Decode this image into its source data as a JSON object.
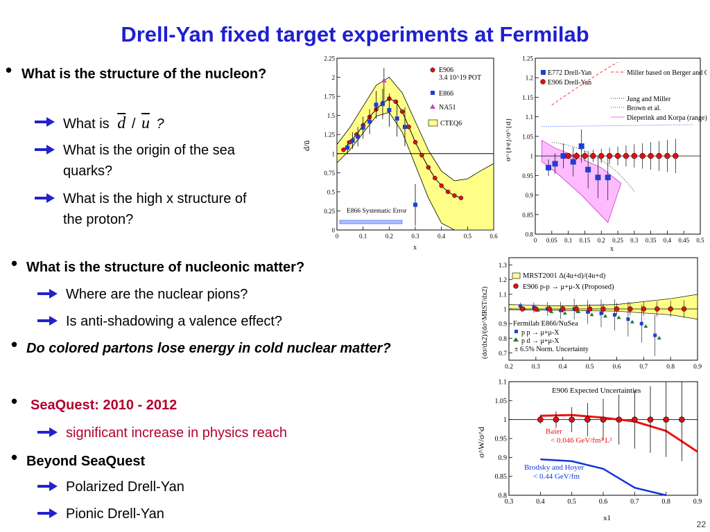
{
  "slide": {
    "title": "Drell-Yan fixed target experiments at Fermilab",
    "page_number": "22"
  },
  "bullets": [
    {
      "text": "What is the structure of the nucleon?",
      "subs": [
        {
          "pre": "What is",
          "d": "d",
          "slash": "/",
          "u": "u",
          "q": "?"
        },
        {
          "text": "What is the origin of the sea quarks?"
        },
        {
          "text": "What is the high x structure of the proton?"
        }
      ]
    },
    {
      "text": "What is the structure of nucleonic matter?",
      "subs": [
        {
          "text": "Where are the nuclear pions?"
        },
        {
          "text": "Is anti-shadowing a valence effect?"
        }
      ]
    },
    {
      "text": "Do colored partons lose energy in cold nuclear matter?"
    },
    {
      "text": "SeaQuest: 2010 - 2012",
      "subs": [
        {
          "text": "significant increase in physics reach"
        }
      ]
    },
    {
      "text": "Beyond SeaQuest",
      "subs": [
        {
          "text": "Polarized Drell-Yan"
        },
        {
          "text": "Pionic Drell-Yan"
        }
      ]
    }
  ],
  "colors": {
    "title": "#1f1fd0",
    "seaquest": "#b3002d",
    "arrow": "#2222cc"
  },
  "chart_data": [
    {
      "type": "line",
      "ylabel": "d̄/ū",
      "xlabel": "x",
      "xlim": [
        0,
        0.6
      ],
      "ylim": [
        0,
        2.25
      ],
      "xticks": [
        "0",
        "0.1",
        "0.2",
        "0.3",
        "0.4",
        "0.5",
        "0.6"
      ],
      "yticks": [
        "0",
        "0.25",
        "0.5",
        "0.75",
        "1",
        "1.25",
        "1.5",
        "1.75",
        "2",
        "2.25"
      ],
      "legend": [
        "E906",
        "3.4 10^19 POT",
        "E866",
        "NA51",
        "CTEQ6"
      ],
      "annotation": "E866 Systematic Error",
      "series": [
        {
          "name": "E906",
          "x": [
            0.025,
            0.05,
            0.075,
            0.1,
            0.125,
            0.15,
            0.175,
            0.2,
            0.225,
            0.25,
            0.275,
            0.3,
            0.325,
            0.35,
            0.375,
            0.4,
            0.425,
            0.45,
            0.475
          ],
          "values": [
            1.05,
            1.15,
            1.25,
            1.37,
            1.48,
            1.58,
            1.66,
            1.72,
            1.68,
            1.55,
            1.35,
            1.15,
            0.98,
            0.82,
            0.68,
            0.58,
            0.5,
            0.45,
            0.42
          ]
        },
        {
          "name": "E866",
          "x": [
            0.04,
            0.06,
            0.08,
            0.1,
            0.125,
            0.15,
            0.175,
            0.2,
            0.23,
            0.26,
            0.3
          ],
          "values": [
            1.08,
            1.17,
            1.22,
            1.34,
            1.42,
            1.64,
            1.65,
            1.57,
            1.46,
            1.35,
            0.33
          ]
        },
        {
          "name": "NA51",
          "x": [
            0.18
          ],
          "values": [
            1.96
          ]
        },
        {
          "name": "CTEQ6",
          "x": [
            0,
            0.05,
            0.1,
            0.15,
            0.2,
            0.25,
            0.3,
            0.35,
            0.4,
            0.45,
            0.5,
            0.55,
            0.6
          ],
          "values": [
            1.0,
            1.2,
            1.45,
            1.7,
            1.78,
            1.55,
            1.15,
            0.75,
            0.45,
            0.3,
            0.3,
            0.38,
            0.45
          ]
        }
      ]
    },
    {
      "type": "line",
      "ylabel": "σ^{Fe}/σ^{d}",
      "xlabel": "x",
      "xticks": [
        "0",
        "0.05",
        "0.1",
        "0.15",
        "0.2",
        "0.25",
        "0.3",
        "0.35",
        "0.4",
        "0.45",
        "0.5"
      ],
      "yticks": [
        "0.8",
        "0.85",
        "0.9",
        "0.95",
        "1",
        "1.05",
        "1.1",
        "1.15",
        "1.2",
        "1.25"
      ],
      "legend": [
        "E772 Drell-Yan",
        "E906 Drell-Yan",
        "Miller based on Berger and Coester",
        "Jung and Miller",
        "Brown et al.",
        "Dieperink and Korpa (range)"
      ],
      "series": [
        {
          "name": "E772 Drell-Yan",
          "x": [
            0.04,
            0.06,
            0.085,
            0.115,
            0.14,
            0.16,
            0.19,
            0.22
          ],
          "values": [
            0.97,
            0.98,
            1.0,
            0.985,
            1.025,
            0.965,
            0.945,
            0.945
          ]
        },
        {
          "name": "E906 Drell-Yan",
          "x": [
            0.1,
            0.125,
            0.15,
            0.175,
            0.2,
            0.225,
            0.25,
            0.275,
            0.3,
            0.325,
            0.35,
            0.375,
            0.4,
            0.425
          ],
          "values": [
            1,
            1,
            1,
            1,
            1,
            1,
            1,
            1,
            1,
            1,
            1,
            1,
            1,
            1
          ]
        }
      ]
    },
    {
      "type": "line",
      "ylabel": "(dσ/dx2)/(dσ^MRST/dx2)",
      "xlabel": "",
      "xticks": [
        "0.2",
        "0.3",
        "0.4",
        "0.5",
        "0.6",
        "0.7",
        "0.8",
        "0.9"
      ],
      "yticks": [
        "0.7",
        "0.8",
        "0.9",
        "1",
        "1.1",
        "1.2",
        "1.3"
      ],
      "legend": [
        "MRST2001 Δ(4u+d)/(4u+d)",
        "E906 p-p → μ+μ-X (Proposed)",
        "Fermilab E866/NuSea",
        "p p → μ+μ-X",
        "p d → μ+μ-X",
        "± 6.5% Norm. Uncertainty"
      ],
      "series": [
        {
          "name": "E906 p-p → μ+μ-X (Proposed)",
          "x": [
            0.25,
            0.3,
            0.35,
            0.4,
            0.45,
            0.5,
            0.55,
            0.6,
            0.65,
            0.7,
            0.75,
            0.8,
            0.85
          ],
          "values": [
            1.0,
            1.0,
            1.0,
            1.0,
            1.0,
            1.0,
            1.0,
            1.0,
            1.0,
            1.0,
            1.0,
            1.0,
            1.0
          ]
        },
        {
          "name": "p p → μ+μ-X",
          "x": [
            0.25,
            0.3,
            0.35,
            0.4,
            0.45,
            0.5,
            0.55,
            0.6,
            0.65,
            0.7,
            0.75
          ],
          "values": [
            1.02,
            1.01,
            1.0,
            0.99,
            1.0,
            0.98,
            0.97,
            0.96,
            0.93,
            0.9,
            0.82
          ]
        }
      ]
    },
    {
      "type": "line",
      "title": "E906 Expected Uncertainties",
      "ylabel": "σ^W/σ^d",
      "xlabel": "x1",
      "xticks": [
        "0.3",
        "0.4",
        "0.5",
        "0.6",
        "0.7",
        "0.8",
        "0.9"
      ],
      "yticks": [
        "0.8",
        "0.85",
        "0.9",
        "0.95",
        "1",
        "1.05",
        "1.1"
      ],
      "legend": [
        "Baier",
        "< 0.046 GeV/fm² L²",
        "Brodsky and Hoyer",
        "< 0.44 GeV/fm"
      ],
      "series": [
        {
          "name": "E906",
          "x": [
            0.4,
            0.45,
            0.5,
            0.55,
            0.6,
            0.65,
            0.7,
            0.75,
            0.8,
            0.85
          ],
          "values": [
            1,
            1,
            1,
            1,
            1,
            1,
            1,
            1,
            1,
            1
          ]
        },
        {
          "name": "Baier",
          "x": [
            0.4,
            0.5,
            0.6,
            0.7,
            0.8,
            0.9
          ],
          "values": [
            1.01,
            1.012,
            1.005,
            0.995,
            0.97,
            0.915
          ]
        },
        {
          "name": "Brodsky and Hoyer",
          "x": [
            0.4,
            0.5,
            0.6,
            0.7,
            0.8
          ],
          "values": [
            0.895,
            0.89,
            0.87,
            0.82,
            0.8
          ]
        }
      ]
    }
  ]
}
